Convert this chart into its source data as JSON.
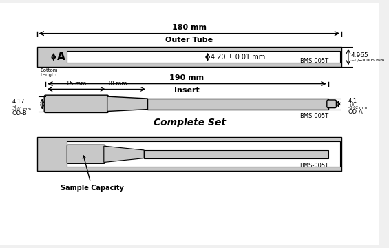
{
  "bg_color": "#f0f0f0",
  "border_color": "#888888",
  "tube_color": "#c8c8c8",
  "white": "#ffffff",
  "black": "#000000",
  "title_outer": "Outer Tube",
  "title_insert": "Insert",
  "title_complete": "Complete Set",
  "label_180mm": "180 mm",
  "label_190mm": "190 mm",
  "label_4p20": "4.20 ± 0.01 mm",
  "label_4p965": "4.965 +0/-0.005 mm",
  "label_bms_t": "BMS-005T",
  "label_bottom": "Bottom\nLength",
  "label_15mm": "15 mm",
  "label_30mm": "30 mm",
  "label_4p17": "4.17\nOD-B",
  "label_tolerance_b": "+0\n0.01 mm",
  "label_4p1": "4.1",
  "label_tolerance_a": "+0\n-0.02 mm",
  "label_od_a": "OD-A",
  "label_sample": "Sample Capacity",
  "label_a": "A",
  "fig_width": 5.65,
  "fig_height": 3.6,
  "dpi": 100
}
